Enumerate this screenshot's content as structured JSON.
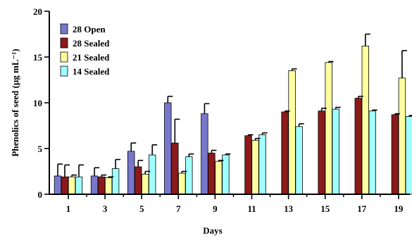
{
  "chart_data": {
    "type": "bar",
    "xlabel": "Days",
    "ylabel": "Phenolics of seed (µg mL⁻¹)",
    "ylim": [
      0,
      20
    ],
    "yticks": [
      0,
      5,
      10,
      15,
      20
    ],
    "categories": [
      "1",
      "3",
      "5",
      "7",
      "9",
      "11",
      "13",
      "15",
      "17",
      "19"
    ],
    "legend_position": "top-left",
    "series": [
      {
        "name": "28 Open",
        "color": "#7777cc",
        "values": [
          2.0,
          2.0,
          4.7,
          10.0,
          8.8,
          null,
          null,
          null,
          null,
          null
        ],
        "errors": [
          1.3,
          0.9,
          0.9,
          0.7,
          1.1,
          null,
          null,
          null,
          null,
          null
        ]
      },
      {
        "name": "28 Sealed",
        "color": "#8b1a1a",
        "values": [
          1.9,
          1.9,
          3.0,
          5.6,
          4.5,
          6.4,
          9.0,
          9.1,
          10.5,
          8.7
        ],
        "errors": [
          1.3,
          0.2,
          0.7,
          2.6,
          0.3,
          0.1,
          0.1,
          0.3,
          0.2,
          0.1
        ]
      },
      {
        "name": "21 Sealed",
        "color": "#ffffa0",
        "values": [
          1.9,
          1.8,
          2.2,
          2.3,
          3.6,
          5.9,
          13.5,
          14.4,
          16.2,
          12.7
        ],
        "errors": [
          0.2,
          0.1,
          0.3,
          0.2,
          0.1,
          0.2,
          0.2,
          0.1,
          1.3,
          3.0
        ]
      },
      {
        "name": "14 Sealed",
        "color": "#a0ffff",
        "values": [
          1.9,
          2.8,
          4.3,
          4.1,
          4.3,
          6.5,
          7.4,
          9.3,
          9.1,
          8.5
        ],
        "errors": [
          1.3,
          1.0,
          1.1,
          0.3,
          0.1,
          0.2,
          0.3,
          0.2,
          0.1,
          0.1
        ]
      }
    ]
  }
}
